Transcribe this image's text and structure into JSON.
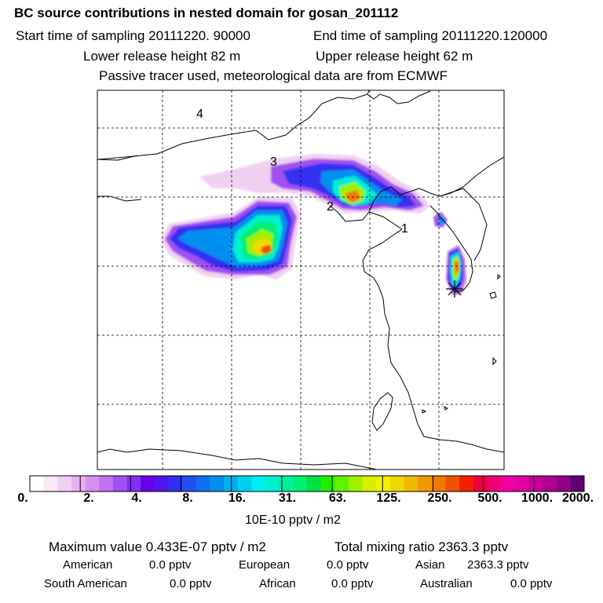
{
  "header": {
    "title": "BC  source contributions in nested domain for gosan_201112",
    "start_time": "Start time of sampling 20111220. 90000",
    "end_time": "End time of sampling 20111220.120000",
    "lower_release": "Lower release height   82 m",
    "upper_release": "Upper release height   62 m",
    "tracer_note": "Passive tracer used, meteorological data are from ECMWF"
  },
  "map": {
    "region_labels": [
      "1",
      "2",
      "3",
      "4"
    ],
    "receptor_marker": "gosan-receptor-star"
  },
  "colorbar": {
    "ticks": [
      "0.",
      "2.",
      "4.",
      "8.",
      "16.",
      "31.",
      "63.",
      "125.",
      "250.",
      "500.",
      "1000.",
      "2000."
    ],
    "units": "10E-10 pptv / m2",
    "colors": [
      "#ffffff",
      "#f8e8f8",
      "#f0d0f0",
      "#e8b0f0",
      "#d890f0",
      "#c070f0",
      "#a050f0",
      "#8030f0",
      "#6a00e8",
      "#5018e8",
      "#3030f0",
      "#2050f0",
      "#1070f0",
      "#0090f0",
      "#00b0f0",
      "#00d0f0",
      "#00f0f0",
      "#00f0d0",
      "#00f0a0",
      "#00f070",
      "#00e040",
      "#20f000",
      "#60f000",
      "#a0f000",
      "#d8f000",
      "#f0f000",
      "#f0d800",
      "#f0b800",
      "#f09800",
      "#f07800",
      "#f05000",
      "#f02000",
      "#f00040",
      "#f00070",
      "#f000a0",
      "#e000a0",
      "#c80098",
      "#b00090",
      "#900088",
      "#600070"
    ]
  },
  "summary": {
    "max_value": "Maximum value  0.433E-07 pptv / m2",
    "total_mixing": "Total mixing ratio     2363.3 pptv",
    "american_label": "American",
    "american_value": "0.0 pptv",
    "european_label": "European",
    "european_value": "0.0 pptv",
    "asian_label": "Asian",
    "asian_value": "2363.3 pptv",
    "south_american_label": "South American",
    "south_american_value": "0.0 pptv",
    "african_label": "African",
    "african_value": "0.0 pptv",
    "australian_label": "Australian",
    "australian_value": "0.0 pptv"
  }
}
